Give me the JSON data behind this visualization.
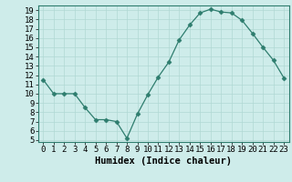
{
  "x": [
    0,
    1,
    2,
    3,
    4,
    5,
    6,
    7,
    8,
    9,
    10,
    11,
    12,
    13,
    14,
    15,
    16,
    17,
    18,
    19,
    20,
    21,
    22,
    23
  ],
  "y": [
    11.5,
    10.0,
    10.0,
    10.0,
    8.5,
    7.2,
    7.2,
    7.0,
    5.2,
    7.8,
    9.9,
    11.8,
    13.4,
    15.8,
    17.4,
    18.7,
    19.1,
    18.8,
    18.7,
    17.9,
    16.5,
    15.0,
    13.6,
    11.7
  ],
  "xlim": [
    -0.5,
    23.5
  ],
  "ylim": [
    4.8,
    19.5
  ],
  "xticks": [
    0,
    1,
    2,
    3,
    4,
    5,
    6,
    7,
    8,
    9,
    10,
    11,
    12,
    13,
    14,
    15,
    16,
    17,
    18,
    19,
    20,
    21,
    22,
    23
  ],
  "yticks": [
    5,
    6,
    7,
    8,
    9,
    10,
    11,
    12,
    13,
    14,
    15,
    16,
    17,
    18,
    19
  ],
  "xlabel": "Humidex (Indice chaleur)",
  "line_color": "#2e7d6e",
  "marker": "D",
  "marker_size": 2.5,
  "bg_color": "#ceecea",
  "grid_color": "#b0d8d4",
  "label_fontsize": 7.5,
  "tick_fontsize": 6.5
}
